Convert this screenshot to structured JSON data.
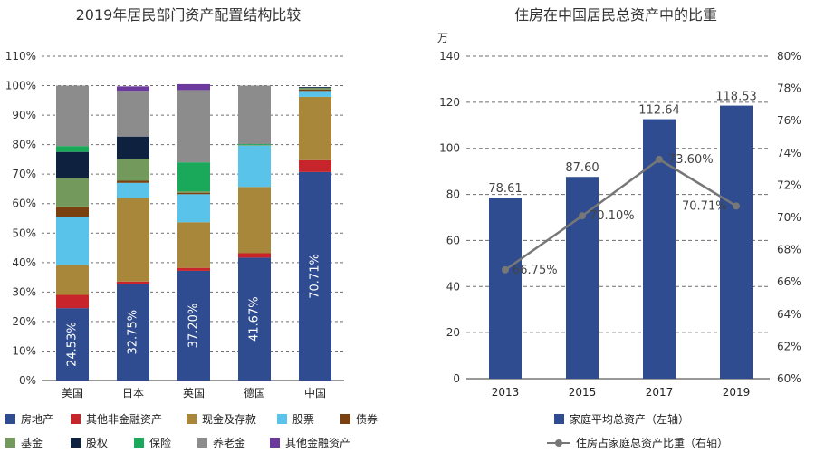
{
  "chart_data": [
    {
      "type": "bar",
      "stacked": true,
      "title": "2019年居民部门资产配置结构比较",
      "categories": [
        "美国",
        "日本",
        "英国",
        "德国",
        "中国"
      ],
      "yticks": [
        "0%",
        "10%",
        "20%",
        "30%",
        "40%",
        "50%",
        "60%",
        "70%",
        "80%",
        "90%",
        "100%",
        "110%"
      ],
      "ylim": [
        0,
        110
      ],
      "grid": true,
      "legend_position": "bottom",
      "series": [
        {
          "name": "房地产",
          "color": "#2e4c8f",
          "values": [
            24.53,
            32.75,
            37.2,
            41.67,
            70.71
          ]
        },
        {
          "name": "其他非金融资产",
          "color": "#c8242b",
          "values": [
            4.5,
            0.8,
            1.0,
            1.5,
            4.0
          ]
        },
        {
          "name": "现金及存款",
          "color": "#a8873a",
          "values": [
            10.0,
            28.5,
            15.5,
            22.5,
            21.5
          ]
        },
        {
          "name": "股票",
          "color": "#59c3ea",
          "values": [
            16.5,
            5.0,
            9.5,
            14.0,
            2.0
          ]
        },
        {
          "name": "债券",
          "color": "#7a4010",
          "values": [
            3.5,
            0.7,
            0.5,
            0.0,
            0.5
          ]
        },
        {
          "name": "基金",
          "color": "#739a5c",
          "values": [
            9.5,
            7.5,
            0.5,
            0.2,
            0.5
          ]
        },
        {
          "name": "股权",
          "color": "#0e2240",
          "values": [
            9.0,
            7.5,
            0.0,
            0.0,
            0.3
          ]
        },
        {
          "name": "保险",
          "color": "#1aa85a",
          "values": [
            2.0,
            0.0,
            9.8,
            0.3,
            0.0
          ]
        },
        {
          "name": "养老金",
          "color": "#8c8c8c",
          "values": [
            20.47,
            15.5,
            24.5,
            19.83,
            0.0
          ]
        },
        {
          "name": "其他金融资产",
          "color": "#6b3a9c",
          "values": [
            0.0,
            1.5,
            2.0,
            0.0,
            0.0
          ]
        }
      ],
      "labels": [
        "24.53%",
        "32.75%",
        "37.20%",
        "41.67%",
        "70.71%"
      ]
    },
    {
      "type": "bar+line",
      "title": "住房在中国居民总资产中的比重",
      "unit_left": "万",
      "categories": [
        "2013",
        "2015",
        "2017",
        "2019"
      ],
      "y_left_ticks": [
        "0",
        "20",
        "40",
        "60",
        "80",
        "100",
        "120",
        "140"
      ],
      "ylim_left": [
        0,
        140
      ],
      "y_right_ticks": [
        "60%",
        "62%",
        "64%",
        "66%",
        "68%",
        "70%",
        "72%",
        "74%",
        "76%",
        "78%",
        "80%"
      ],
      "ylim_right": [
        60,
        80
      ],
      "grid": true,
      "legend_position": "bottom",
      "bar_series": {
        "name": "家庭平均总资产（左轴）",
        "color": "#2e4c8f",
        "values": [
          78.61,
          87.6,
          112.64,
          118.53
        ],
        "labels": [
          "78.61",
          "87.60",
          "112.64",
          "118.53"
        ]
      },
      "line_series": {
        "name": "住房占家庭总资产比重（右轴）",
        "color": "#777777",
        "values": [
          66.75,
          70.1,
          73.6,
          70.71
        ],
        "labels": [
          "66.75%",
          "70.10%",
          "73.60%",
          "70.71%"
        ]
      }
    }
  ]
}
